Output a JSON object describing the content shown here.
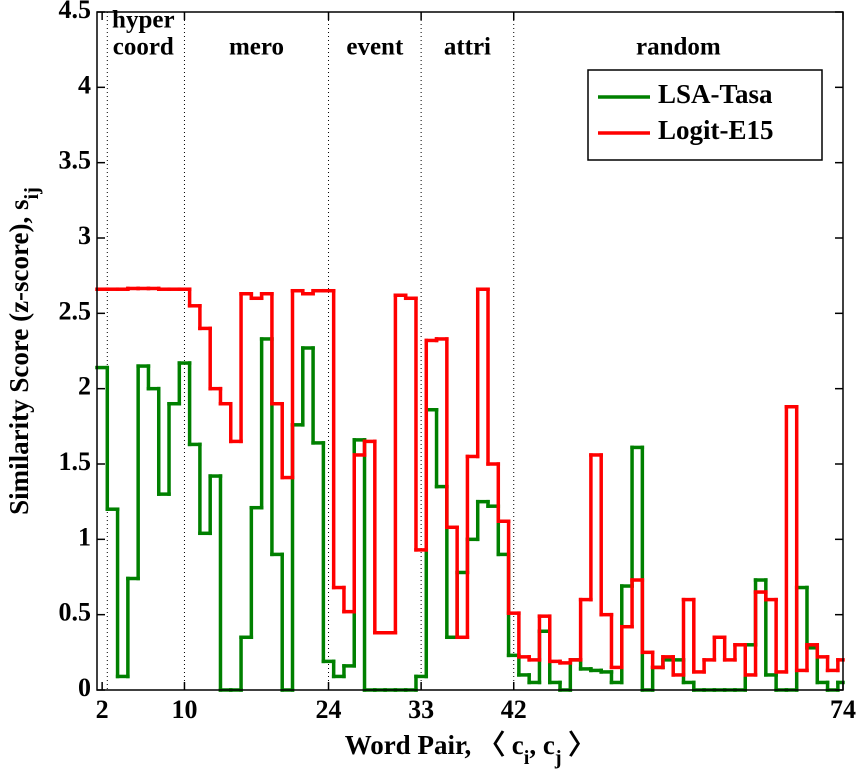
{
  "chart_data": {
    "type": "stairs",
    "xlabel": [
      {
        "text": "Word Pair, 〈 c",
        "sub": false
      },
      {
        "text": "i",
        "sub": true
      },
      {
        "text": ", c",
        "sub": false
      },
      {
        "text": "j",
        "sub": true
      },
      {
        "text": " 〉",
        "sub": false
      }
    ],
    "ylabel": [
      {
        "text": "Similarity Score (z-score), s",
        "sub": false
      },
      {
        "text": "ij",
        "sub": true
      }
    ],
    "x": [
      2,
      3,
      4,
      5,
      6,
      7,
      8,
      9,
      10,
      11,
      12,
      13,
      14,
      15,
      16,
      17,
      18,
      19,
      20,
      21,
      22,
      23,
      24,
      25,
      26,
      27,
      28,
      29,
      30,
      31,
      32,
      33,
      34,
      35,
      36,
      37,
      38,
      39,
      40,
      41,
      42,
      43,
      44,
      45,
      46,
      47,
      48,
      49,
      50,
      51,
      52,
      53,
      54,
      55,
      56,
      57,
      58,
      59,
      60,
      61,
      62,
      63,
      64,
      65,
      66,
      67,
      68,
      69,
      70,
      71,
      72,
      73,
      74
    ],
    "series": [
      {
        "name": "LSA-Tasa",
        "color": "#008000",
        "values": [
          2.14,
          1.2,
          0.09,
          0.74,
          2.15,
          2.0,
          1.3,
          1.9,
          2.17,
          1.63,
          1.04,
          1.42,
          0,
          0,
          0.35,
          1.21,
          2.33,
          0.9,
          0,
          1.76,
          2.27,
          1.64,
          0.19,
          0.09,
          0.16,
          1.66,
          0,
          0,
          0,
          0,
          0,
          0.09,
          1.86,
          1.35,
          0.35,
          0.78,
          1.0,
          1.25,
          1.22,
          0.9,
          0.23,
          0.1,
          0.05,
          0.39,
          0.05,
          0,
          0.2,
          0.14,
          0.13,
          0.12,
          0.05,
          0.69,
          1.61,
          0,
          0.15,
          0.2,
          0.2,
          0.05,
          0,
          0,
          0,
          0,
          0,
          0.3,
          0.73,
          0.1,
          0,
          0,
          0.68,
          0.28,
          0.05,
          0,
          0.05
        ]
      },
      {
        "name": "Logit-E15",
        "color": "#ff0000",
        "values": [
          2.66,
          2.66,
          2.66,
          2.665,
          2.665,
          2.665,
          2.66,
          2.66,
          2.66,
          2.55,
          2.4,
          2.0,
          1.9,
          1.65,
          2.63,
          2.6,
          2.63,
          1.9,
          1.41,
          2.65,
          2.63,
          2.65,
          2.65,
          0.68,
          0.52,
          1.56,
          1.65,
          0.38,
          0.38,
          2.62,
          2.6,
          0.93,
          2.32,
          2.33,
          1.08,
          0.35,
          1.55,
          2.66,
          1.5,
          1.12,
          0.51,
          0.22,
          0.2,
          0.49,
          0.19,
          0.18,
          0.2,
          0.6,
          1.56,
          0.5,
          0.15,
          0.42,
          0.73,
          0.25,
          0.15,
          0.22,
          0.1,
          0.6,
          0.12,
          0.2,
          0.35,
          0.2,
          0.3,
          0.1,
          0.65,
          0.6,
          0.12,
          1.88,
          0.13,
          0.3,
          0.22,
          0.13,
          0.2
        ]
      }
    ],
    "xlim": [
      1.5,
      74
    ],
    "ylim": [
      0,
      4.5
    ],
    "xticks": [
      2,
      10,
      24,
      33,
      42,
      74
    ],
    "yticks": [
      0,
      0.5,
      1,
      1.5,
      2,
      2.5,
      3,
      3.5,
      4,
      4.5
    ],
    "boundaries": [
      2.5,
      10,
      24,
      33,
      42
    ],
    "regions": [
      {
        "label": "hyper",
        "x": 6,
        "row": 0
      },
      {
        "label": "coord",
        "x": 6,
        "row": 1
      },
      {
        "label": "mero",
        "x": 17,
        "row": 1
      },
      {
        "label": "event",
        "x": 28.5,
        "row": 1
      },
      {
        "label": "attri",
        "x": 37.5,
        "row": 1
      },
      {
        "label": "random",
        "x": 58,
        "row": 1
      }
    ],
    "legend": "upper right"
  }
}
